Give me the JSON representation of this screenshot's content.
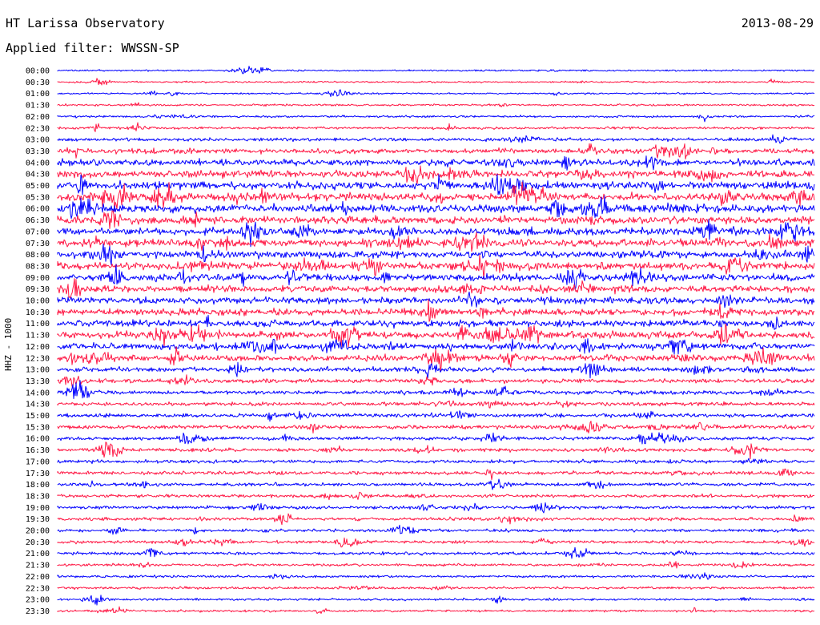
{
  "header": {
    "station": "HT Larissa Observatory",
    "date": "2013-08-29",
    "filter": "Applied filter: WWSSN-SP"
  },
  "channel": "HHZ - 1000",
  "colors": {
    "trace_a": "#0000ff",
    "trace_b": "#ff1744",
    "background": "#ffffff",
    "text": "#000000"
  },
  "chart_data": {
    "type": "line",
    "title": "HT Larissa Observatory",
    "xlabel": "",
    "ylabel": "HHZ - 1000",
    "row_labels": [
      "00:00",
      "00:30",
      "01:00",
      "01:30",
      "02:00",
      "02:30",
      "03:00",
      "03:30",
      "04:00",
      "04:30",
      "05:00",
      "05:30",
      "06:00",
      "06:30",
      "07:00",
      "07:30",
      "08:00",
      "08:30",
      "09:00",
      "09:30",
      "10:00",
      "10:30",
      "11:00",
      "11:30",
      "12:00",
      "12:30",
      "13:00",
      "13:30",
      "14:00",
      "14:30",
      "15:00",
      "15:30",
      "16:00",
      "16:30",
      "17:00",
      "17:30",
      "18:00",
      "18:30",
      "19:00",
      "19:30",
      "20:00",
      "20:30",
      "21:00",
      "21:30",
      "22:00",
      "22:30",
      "23:00",
      "23:30"
    ],
    "row_colors": [
      "blue",
      "red",
      "blue",
      "red",
      "blue",
      "red",
      "blue",
      "red",
      "blue",
      "red",
      "blue",
      "red",
      "blue",
      "red",
      "blue",
      "red",
      "blue",
      "red",
      "blue",
      "red",
      "blue",
      "red",
      "blue",
      "red",
      "blue",
      "red",
      "blue",
      "red",
      "blue",
      "red",
      "blue",
      "red",
      "blue",
      "red",
      "blue",
      "red",
      "blue",
      "red",
      "blue",
      "red",
      "blue",
      "red",
      "blue",
      "red",
      "blue",
      "red",
      "blue",
      "red"
    ],
    "relative_noise_level": [
      0.3,
      0.3,
      0.3,
      0.4,
      0.5,
      0.6,
      1.0,
      1.6,
      2.2,
      2.6,
      2.8,
      2.8,
      2.8,
      2.8,
      2.6,
      2.6,
      2.6,
      2.6,
      2.4,
      2.4,
      2.4,
      2.4,
      2.4,
      2.4,
      2.4,
      2.2,
      1.6,
      1.4,
      1.2,
      1.2,
      1.2,
      1.2,
      1.1,
      1.0,
      1.0,
      1.0,
      0.9,
      0.9,
      0.9,
      0.9,
      0.8,
      0.8,
      0.8,
      0.7,
      0.6,
      0.6,
      0.5,
      0.5
    ],
    "grid": false,
    "legend": "none"
  }
}
